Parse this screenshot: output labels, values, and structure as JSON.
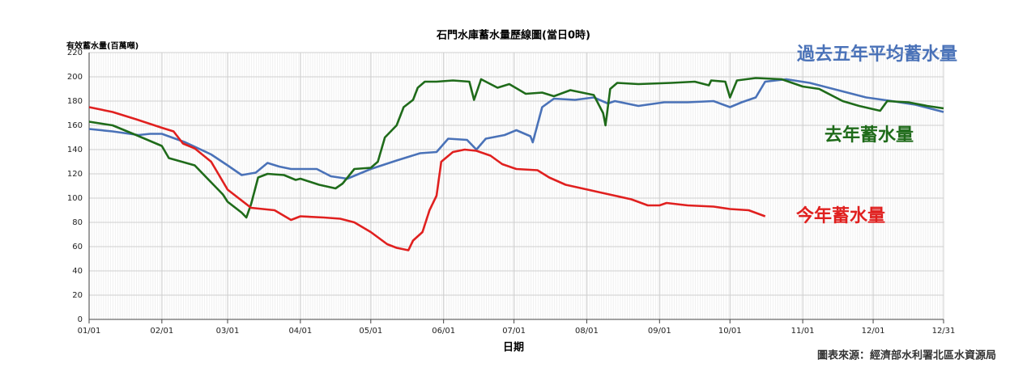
{
  "chart_data": {
    "type": "line",
    "title": "石門水庫蓄水量歷線圖(當日0時)",
    "y_label": "有效蓄水量(百萬噸)",
    "x_label": "日期",
    "source": "圖表來源：經濟部水利署北區水資源局",
    "xlim": [
      0,
      364
    ],
    "xticks": [
      {
        "value": 0,
        "label": "01/01"
      },
      {
        "value": 31,
        "label": "02/01"
      },
      {
        "value": 59,
        "label": "03/01"
      },
      {
        "value": 90,
        "label": "04/01"
      },
      {
        "value": 120,
        "label": "05/01"
      },
      {
        "value": 151,
        "label": "06/01"
      },
      {
        "value": 181,
        "label": "07/01"
      },
      {
        "value": 212,
        "label": "08/01"
      },
      {
        "value": 243,
        "label": "09/01"
      },
      {
        "value": 273,
        "label": "10/01"
      },
      {
        "value": 304,
        "label": "11/01"
      },
      {
        "value": 334,
        "label": "12/01"
      },
      {
        "value": 364,
        "label": "12/31"
      }
    ],
    "ylim": [
      0,
      220
    ],
    "yticks": [
      0,
      20,
      40,
      60,
      80,
      100,
      120,
      140,
      160,
      180,
      200,
      220
    ],
    "grid": true,
    "series": [
      {
        "name": "過去五年平均蓄水量",
        "color": "#4a72b8",
        "x": [
          0,
          10,
          21,
          26,
          31,
          41,
          52,
          59,
          65,
          71,
          76,
          81,
          86,
          97,
          103,
          110,
          120,
          131,
          141,
          148,
          153,
          161,
          165,
          169,
          177,
          182,
          188,
          189,
          193,
          198,
          207,
          215,
          221,
          224,
          234,
          245,
          255,
          266,
          273,
          278,
          284,
          288,
          297,
          307,
          321,
          331,
          342,
          352,
          364
        ],
        "values": [
          157,
          155,
          152,
          153,
          153,
          146,
          136,
          127,
          119,
          121,
          129,
          126,
          124,
          124,
          118,
          116,
          124,
          131,
          137,
          138,
          149,
          148,
          140,
          149,
          152,
          156,
          151,
          146,
          175,
          182,
          181,
          183,
          178,
          180,
          176,
          179,
          179,
          180,
          175,
          179,
          183,
          196,
          198,
          195,
          188,
          183,
          180,
          177,
          171
        ]
      },
      {
        "name": "去年蓄水量",
        "color": "#1f6b1a",
        "x": [
          0,
          10,
          20,
          31,
          34,
          45,
          52,
          57,
          59,
          65,
          67,
          69,
          72,
          76,
          83,
          88,
          90,
          98,
          105,
          108,
          113,
          120,
          123,
          126,
          131,
          134,
          138,
          140,
          143,
          148,
          155,
          162,
          164,
          167,
          174,
          179,
          186,
          193,
          198,
          205,
          215,
          219,
          220,
          222,
          225,
          234,
          248,
          258,
          264,
          265,
          271,
          273,
          276,
          284,
          295,
          304,
          311,
          321,
          328,
          337,
          340,
          349,
          357,
          364
        ],
        "values": [
          163,
          160,
          152,
          143,
          133,
          127,
          113,
          103,
          97,
          88,
          84,
          95,
          117,
          120,
          119,
          115,
          116,
          111,
          108,
          112,
          124,
          125,
          130,
          150,
          160,
          175,
          181,
          191,
          196,
          196,
          197,
          196,
          181,
          198,
          191,
          194,
          186,
          187,
          184,
          189,
          185,
          170,
          160,
          190,
          195,
          194,
          195,
          196,
          193,
          197,
          196,
          183,
          197,
          199,
          198,
          192,
          190,
          180,
          176,
          172,
          180,
          179,
          176,
          174
        ]
      },
      {
        "name": "今年蓄水量",
        "color": "#e0201f",
        "x": [
          0,
          10,
          20,
          31,
          36,
          40,
          45,
          52,
          59,
          69,
          79,
          86,
          90,
          100,
          107,
          113,
          120,
          127,
          131,
          136,
          138,
          142,
          145,
          148,
          150,
          155,
          160,
          165,
          171,
          176,
          182,
          191,
          196,
          203,
          210,
          217,
          224,
          231,
          238,
          243,
          246,
          255,
          266,
          273,
          281,
          288
        ],
        "values": [
          175,
          171,
          165,
          158,
          155,
          145,
          141,
          130,
          107,
          92,
          90,
          82,
          85,
          84,
          83,
          80,
          72,
          62,
          59,
          57,
          65,
          72,
          90,
          102,
          130,
          138,
          140,
          139,
          135,
          128,
          124,
          123,
          117,
          111,
          108,
          105,
          102,
          99,
          94,
          94,
          96,
          94,
          93,
          91,
          90,
          85
        ]
      }
    ]
  }
}
